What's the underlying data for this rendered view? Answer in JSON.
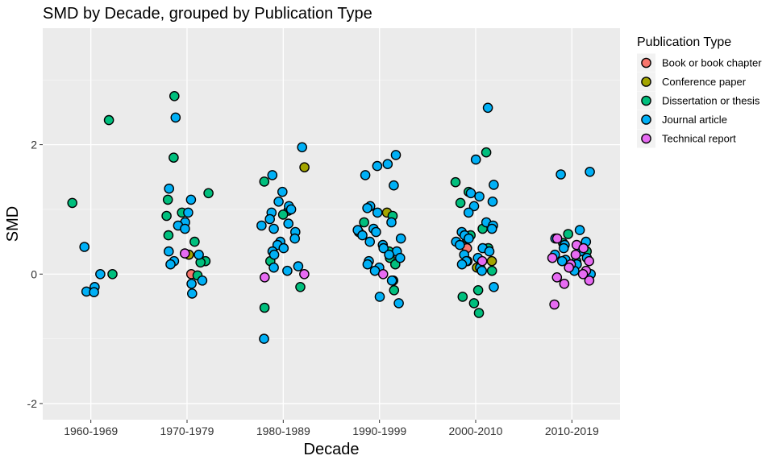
{
  "chart_data": {
    "type": "scatter",
    "title": "SMD by Decade, grouped by Publication Type",
    "xlabel": "Decade",
    "ylabel": "SMD",
    "categories": [
      "1960-1969",
      "1970-1979",
      "1980-1989",
      "1990-1999",
      "2000-2010",
      "2010-2019"
    ],
    "ylim": [
      -2.25,
      3.8
    ],
    "yticks": [
      -2,
      0,
      2
    ],
    "ytick_labels": [
      "-2",
      "0",
      "2"
    ],
    "grid": true,
    "jitter": "horizontal",
    "legend": {
      "title": "Publication Type",
      "placement": "right",
      "entries": [
        "Book or book chapter",
        "Conference paper",
        "Dissertation or thesis",
        "Journal article",
        "Technical report"
      ]
    },
    "colors": {
      "Book or book chapter": "#F8766D",
      "Conference paper": "#A3A500",
      "Dissertation or thesis": "#00BF7D",
      "Journal article": "#00B0F6",
      "Technical report": "#E76BF3"
    },
    "series": [
      {
        "name": "Book or book chapter",
        "points": [
          [
            1,
            0.0
          ],
          [
            4,
            0.4
          ]
        ]
      },
      {
        "name": "Conference paper",
        "points": [
          [
            1,
            0.3
          ],
          [
            2,
            1.65
          ],
          [
            3,
            0.95
          ],
          [
            4,
            0.1
          ],
          [
            4,
            0.2
          ]
        ]
      },
      {
        "name": "Dissertation or thesis",
        "points": [
          [
            0,
            2.38
          ],
          [
            0,
            1.1
          ],
          [
            0,
            0.0
          ],
          [
            1,
            2.75
          ],
          [
            1,
            1.8
          ],
          [
            1,
            1.25
          ],
          [
            1,
            1.15
          ],
          [
            1,
            0.95
          ],
          [
            1,
            0.9
          ],
          [
            1,
            0.6
          ],
          [
            1,
            0.5
          ],
          [
            1,
            0.2
          ],
          [
            1,
            0.18
          ],
          [
            1,
            -0.02
          ],
          [
            2,
            1.43
          ],
          [
            2,
            0.98
          ],
          [
            2,
            0.92
          ],
          [
            2,
            0.2
          ],
          [
            2,
            -0.2
          ],
          [
            2,
            -0.52
          ],
          [
            3,
            0.9
          ],
          [
            3,
            0.8
          ],
          [
            3,
            0.65
          ],
          [
            3,
            0.35
          ],
          [
            3,
            0.25
          ],
          [
            3,
            0.15
          ],
          [
            3,
            -0.1
          ],
          [
            3,
            -0.25
          ],
          [
            4,
            1.88
          ],
          [
            4,
            1.42
          ],
          [
            4,
            1.27
          ],
          [
            4,
            1.1
          ],
          [
            4,
            0.7
          ],
          [
            4,
            0.6
          ],
          [
            4,
            0.55
          ],
          [
            4,
            0.4
          ],
          [
            4,
            0.2
          ],
          [
            4,
            0.05
          ],
          [
            4,
            -0.25
          ],
          [
            4,
            -0.35
          ],
          [
            4,
            -0.45
          ],
          [
            4,
            -0.6
          ],
          [
            5,
            0.62
          ],
          [
            5,
            0.48
          ],
          [
            5,
            0.35
          ],
          [
            5,
            0.2
          ]
        ]
      },
      {
        "name": "Journal article",
        "points": [
          [
            0,
            0.42
          ],
          [
            0,
            0.0
          ],
          [
            0,
            -0.2
          ],
          [
            0,
            -0.27
          ],
          [
            0,
            -0.28
          ],
          [
            1,
            2.42
          ],
          [
            1,
            1.32
          ],
          [
            1,
            1.15
          ],
          [
            1,
            0.95
          ],
          [
            1,
            0.8
          ],
          [
            1,
            0.75
          ],
          [
            1,
            0.7
          ],
          [
            1,
            0.35
          ],
          [
            1,
            0.3
          ],
          [
            1,
            0.2
          ],
          [
            1,
            0.15
          ],
          [
            1,
            -0.1
          ],
          [
            1,
            -0.15
          ],
          [
            1,
            -0.3
          ],
          [
            2,
            1.96
          ],
          [
            2,
            1.53
          ],
          [
            2,
            1.27
          ],
          [
            2,
            1.12
          ],
          [
            2,
            1.05
          ],
          [
            2,
            1.0
          ],
          [
            2,
            0.95
          ],
          [
            2,
            0.85
          ],
          [
            2,
            0.78
          ],
          [
            2,
            0.75
          ],
          [
            2,
            0.7
          ],
          [
            2,
            0.65
          ],
          [
            2,
            0.55
          ],
          [
            2,
            0.5
          ],
          [
            2,
            0.45
          ],
          [
            2,
            0.4
          ],
          [
            2,
            0.35
          ],
          [
            2,
            0.3
          ],
          [
            2,
            0.12
          ],
          [
            2,
            0.1
          ],
          [
            2,
            0.05
          ],
          [
            2,
            -1.0
          ],
          [
            3,
            1.84
          ],
          [
            3,
            1.7
          ],
          [
            3,
            1.67
          ],
          [
            3,
            1.53
          ],
          [
            3,
            1.37
          ],
          [
            3,
            1.05
          ],
          [
            3,
            1.02
          ],
          [
            3,
            0.95
          ],
          [
            3,
            0.8
          ],
          [
            3,
            0.7
          ],
          [
            3,
            0.68
          ],
          [
            3,
            0.65
          ],
          [
            3,
            0.6
          ],
          [
            3,
            0.55
          ],
          [
            3,
            0.5
          ],
          [
            3,
            0.45
          ],
          [
            3,
            0.4
          ],
          [
            3,
            0.35
          ],
          [
            3,
            0.3
          ],
          [
            3,
            0.25
          ],
          [
            3,
            0.2
          ],
          [
            3,
            0.15
          ],
          [
            3,
            0.1
          ],
          [
            3,
            0.05
          ],
          [
            3,
            -0.1
          ],
          [
            3,
            -0.35
          ],
          [
            3,
            -0.45
          ],
          [
            4,
            2.57
          ],
          [
            4,
            1.77
          ],
          [
            4,
            1.38
          ],
          [
            4,
            1.25
          ],
          [
            4,
            1.2
          ],
          [
            4,
            1.12
          ],
          [
            4,
            1.05
          ],
          [
            4,
            0.95
          ],
          [
            4,
            0.8
          ],
          [
            4,
            0.75
          ],
          [
            4,
            0.7
          ],
          [
            4,
            0.65
          ],
          [
            4,
            0.6
          ],
          [
            4,
            0.55
          ],
          [
            4,
            0.5
          ],
          [
            4,
            0.45
          ],
          [
            4,
            0.4
          ],
          [
            4,
            0.35
          ],
          [
            4,
            0.3
          ],
          [
            4,
            0.25
          ],
          [
            4,
            0.2
          ],
          [
            4,
            0.15
          ],
          [
            4,
            0.1
          ],
          [
            4,
            0.05
          ],
          [
            4,
            -0.2
          ],
          [
            5,
            1.58
          ],
          [
            5,
            1.54
          ],
          [
            5,
            0.68
          ],
          [
            5,
            0.55
          ],
          [
            5,
            0.5
          ],
          [
            5,
            0.45
          ],
          [
            5,
            0.4
          ],
          [
            5,
            0.35
          ],
          [
            5,
            0.3
          ],
          [
            5,
            0.25
          ],
          [
            5,
            0.22
          ],
          [
            5,
            0.2
          ],
          [
            5,
            0.15
          ],
          [
            5,
            0.1
          ],
          [
            5,
            0.05
          ],
          [
            5,
            0.0
          ]
        ]
      },
      {
        "name": "Technical report",
        "points": [
          [
            1,
            0.32
          ],
          [
            2,
            0.0
          ],
          [
            2,
            -0.05
          ],
          [
            3,
            0.0
          ],
          [
            4,
            0.2
          ],
          [
            5,
            0.55
          ],
          [
            5,
            0.45
          ],
          [
            5,
            0.4
          ],
          [
            5,
            0.3
          ],
          [
            5,
            0.25
          ],
          [
            5,
            0.2
          ],
          [
            5,
            0.15
          ],
          [
            5,
            0.1
          ],
          [
            5,
            0.05
          ],
          [
            5,
            0.0
          ],
          [
            5,
            -0.05
          ],
          [
            5,
            -0.1
          ],
          [
            5,
            -0.15
          ],
          [
            5,
            -0.47
          ]
        ]
      }
    ]
  }
}
